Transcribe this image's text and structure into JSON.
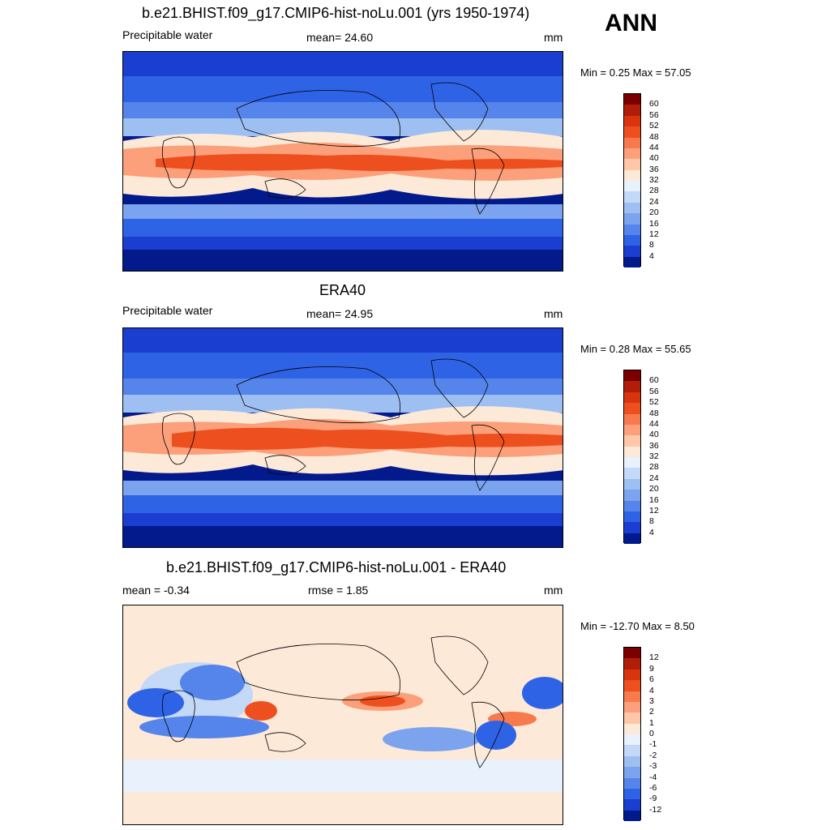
{
  "season": "ANN",
  "unit": "mm",
  "panels": [
    {
      "title": "b.e21.BHIST.f09_g17.CMIP6-hist-noLu.001 (yrs 1950-1974)",
      "left_label": "Precipitable water",
      "mean_text": "mean=  24.60",
      "minmax_text": "Min =   0.25 Max =  57.05"
    },
    {
      "title": "ERA40",
      "left_label": "Precipitable water",
      "mean_text": "mean=  24.95",
      "minmax_text": "Min =   0.28 Max =  55.65"
    },
    {
      "title": "b.e21.BHIST.f09_g17.CMIP6-hist-noLu.001 - ERA40",
      "left_label": "mean =  -0.34",
      "mean_text": "rmse =   1.85",
      "minmax_text": "Min = -12.70 Max =   8.50"
    }
  ],
  "colorbars": {
    "absolute": {
      "labels": [
        "60",
        "56",
        "52",
        "48",
        "44",
        "40",
        "36",
        "32",
        "28",
        "24",
        "20",
        "16",
        "12",
        "8",
        "4"
      ],
      "colors": [
        "#7a0000",
        "#b01e0a",
        "#d8350f",
        "#ee4f1f",
        "#f77a4d",
        "#fba07a",
        "#fdc7a8",
        "#fde9d8",
        "#e8f1fc",
        "#c3d9f7",
        "#9ebff2",
        "#7ba3ee",
        "#5585eb",
        "#2f63e6",
        "#1a3fd0",
        "#021a8c"
      ]
    },
    "difference": {
      "labels": [
        "12",
        "9",
        "6",
        "4",
        "3",
        "2",
        "1",
        "0",
        "-1",
        "-2",
        "-3",
        "-4",
        "-6",
        "-9",
        "-12"
      ],
      "colors": [
        "#7a0000",
        "#b01e0a",
        "#d8350f",
        "#ee4f1f",
        "#f77a4d",
        "#fba07a",
        "#fdc7a8",
        "#fde9d8",
        "#e8f1fc",
        "#c3d9f7",
        "#9ebff2",
        "#7ba3ee",
        "#5585eb",
        "#2f63e6",
        "#1a3fd0",
        "#021a8c"
      ]
    }
  },
  "chart_data": [
    {
      "type": "heatmap",
      "title": "b.e21.BHIST.f09_g17.CMIP6-hist-noLu.001 (yrs 1950-1974)",
      "variable": "Precipitable water",
      "units": "mm",
      "mean": 24.6,
      "min": 0.25,
      "max": 57.05,
      "contour_levels": [
        4,
        8,
        12,
        16,
        20,
        24,
        28,
        32,
        36,
        40,
        44,
        48,
        52,
        56,
        60
      ]
    },
    {
      "type": "heatmap",
      "title": "ERA40",
      "variable": "Precipitable water",
      "units": "mm",
      "mean": 24.95,
      "min": 0.28,
      "max": 55.65,
      "contour_levels": [
        4,
        8,
        12,
        16,
        20,
        24,
        28,
        32,
        36,
        40,
        44,
        48,
        52,
        56,
        60
      ]
    },
    {
      "type": "heatmap",
      "title": "b.e21.BHIST.f09_g17.CMIP6-hist-noLu.001 - ERA40",
      "units": "mm",
      "mean": -0.34,
      "rmse": 1.85,
      "min": -12.7,
      "max": 8.5,
      "contour_levels": [
        -12,
        -9,
        -6,
        -4,
        -3,
        -2,
        -1,
        0,
        1,
        2,
        3,
        4,
        6,
        9,
        12
      ]
    }
  ]
}
